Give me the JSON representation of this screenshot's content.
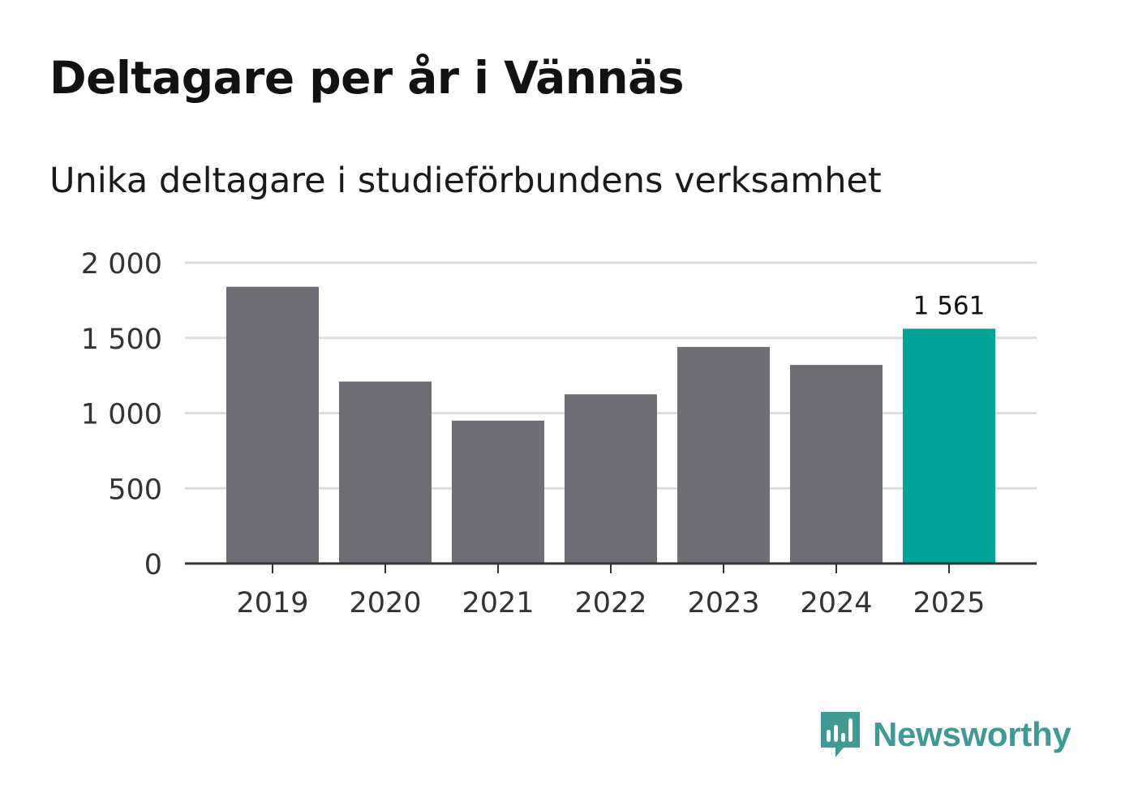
{
  "title": "Deltagare per år i Vännäs",
  "subtitle": "Unika deltagare i studieförbundens verksamhet",
  "brand": {
    "name": "Newsworthy",
    "icon": "newsworthy-logo-icon",
    "color": "#3f9a94"
  },
  "colors": {
    "bar_default": "#6f6e74",
    "bar_highlight": "#00a398",
    "gridline": "#dddddd",
    "axis": "#333333",
    "tick_text": "#333333"
  },
  "chart_data": {
    "type": "bar",
    "title": "Deltagare per år i Vännäs",
    "subtitle": "Unika deltagare i studieförbundens verksamhet",
    "xlabel": "",
    "ylabel": "",
    "categories": [
      "2019",
      "2020",
      "2021",
      "2022",
      "2023",
      "2024",
      "2025"
    ],
    "values": [
      1840,
      1210,
      950,
      1125,
      1440,
      1320,
      1561
    ],
    "highlight_index": 6,
    "highlight_label": "1 561",
    "ylim": [
      0,
      2000
    ],
    "yticks": [
      0,
      500,
      1000,
      1500,
      2000
    ],
    "ytick_labels": [
      "0",
      "500",
      "1 000",
      "1 500",
      "2 000"
    ],
    "grid": true,
    "legend": "none"
  }
}
